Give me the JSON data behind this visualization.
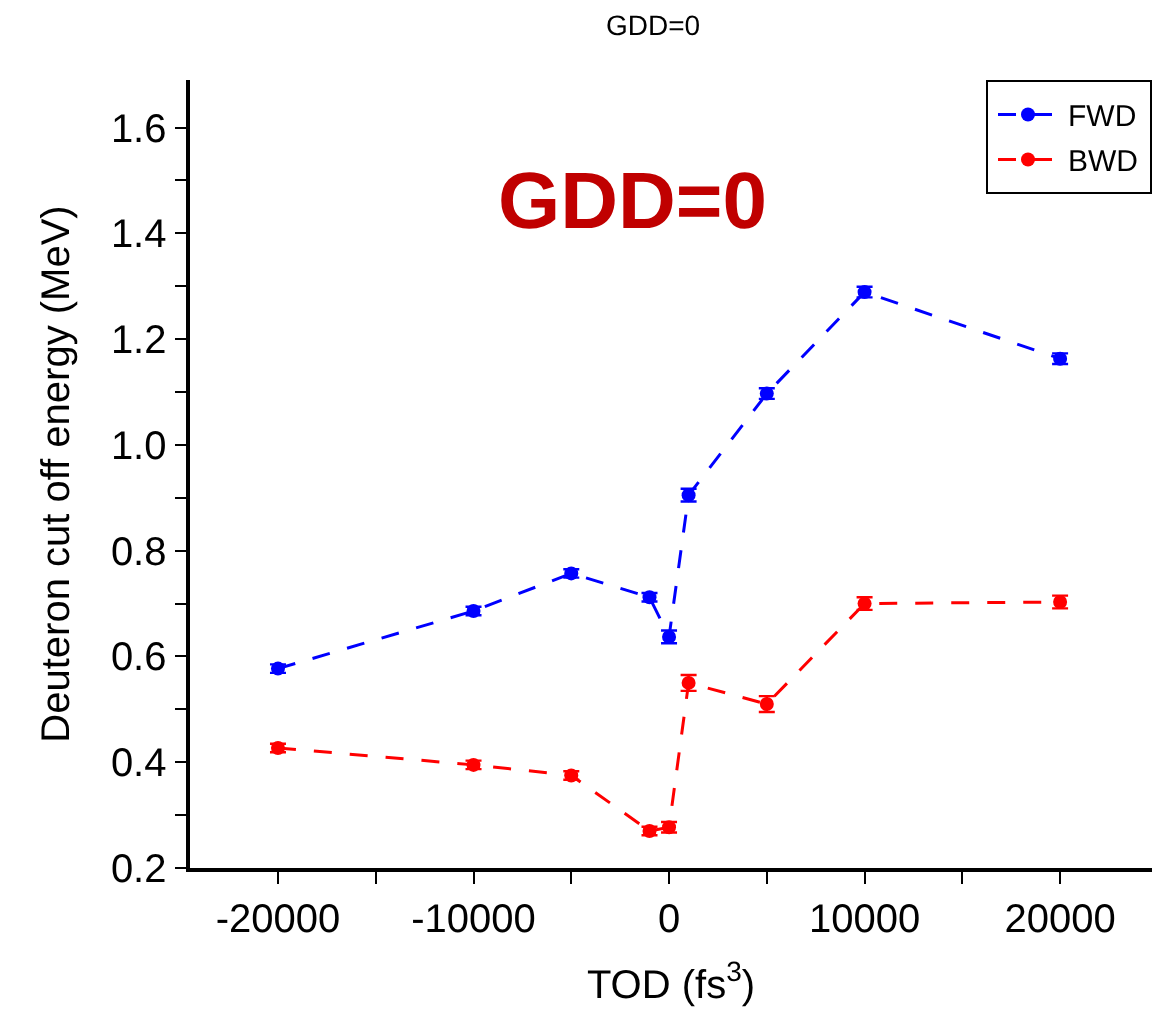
{
  "chart_data": {
    "type": "line",
    "title": "GDD=0",
    "xlabel": "TOD (fs$^{3}$)",
    "ylabel": "Deuteron cut off energy (MeV)",
    "annotations": [
      "GDD=0"
    ],
    "x": [
      -20000,
      -10000,
      -5000,
      -1000,
      0,
      1000,
      5000,
      10000,
      20000
    ],
    "series": [
      {
        "name": "FWD",
        "color": "#0000ff",
        "values": [
          0.577,
          0.686,
          0.757,
          0.712,
          0.637,
          0.905,
          1.097,
          1.289,
          1.163
        ],
        "errors": [
          0.008,
          0.008,
          0.008,
          0.008,
          0.012,
          0.012,
          0.01,
          0.01,
          0.01
        ]
      },
      {
        "name": "BWD",
        "color": "#ff0000",
        "values": [
          0.427,
          0.395,
          0.375,
          0.27,
          0.277,
          0.55,
          0.51,
          0.7,
          0.703
        ],
        "errors": [
          0.008,
          0.008,
          0.008,
          0.008,
          0.01,
          0.015,
          0.015,
          0.012,
          0.012
        ]
      }
    ],
    "xlim": [
      -24500,
      24700
    ],
    "ylim": [
      0.2,
      1.69
    ],
    "xticks": [
      -20000,
      {
        "value": -15000,
        "label": null
      },
      -10000,
      {
        "value": -5000,
        "label": null
      },
      0,
      {
        "value": 5000,
        "label": null
      },
      10000,
      {
        "value": 15000,
        "label": null
      },
      20000
    ],
    "yticks": [
      0.2,
      {
        "value": 0.3,
        "label": null
      },
      0.4,
      {
        "value": 0.5,
        "label": null
      },
      0.6,
      {
        "value": 0.7,
        "label": null
      },
      0.8,
      {
        "value": 0.9,
        "label": null
      },
      {
        "value": 1.0,
        "label": "1.0"
      },
      {
        "value": 1.1,
        "label": null
      },
      1.2,
      {
        "value": 1.3,
        "label": null
      },
      1.4,
      {
        "value": 1.5,
        "label": null
      },
      1.6
    ],
    "grid": false,
    "legend": "top right",
    "marker": "circle",
    "line_style": "dashed"
  }
}
